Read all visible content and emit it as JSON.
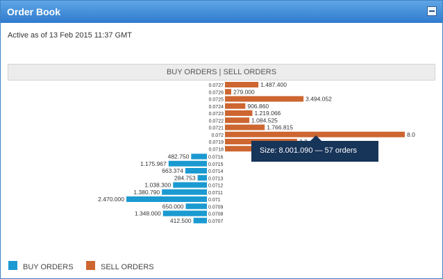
{
  "panel": {
    "title": "Order Book",
    "minimize_icon": "minimize-icon",
    "active_text": "Active as of 13 Feb 2015 11:37 GMT",
    "header_title": "BUY ORDERS | SELL ORDERS"
  },
  "colors": {
    "buy": "#1b9ad1",
    "sell": "#cd6630",
    "title_bar": "#3f83c6"
  },
  "tooltip": {
    "text": "Size: 8.001.090 — 57 orders"
  },
  "legend": [
    {
      "key": "buy",
      "label": "BUY ORDERS"
    },
    {
      "key": "sell",
      "label": "SELL ORDERS"
    }
  ],
  "chart_data": {
    "type": "bar",
    "sell_orders": [
      {
        "price": "0.0727",
        "size": 1487400,
        "label": "1.487.400"
      },
      {
        "price": "0.0726",
        "size": 279000,
        "label": "279.000"
      },
      {
        "price": "0.0725",
        "size": 3494052,
        "label": "3.494.052"
      },
      {
        "price": "0.0724",
        "size": 906860,
        "label": "906.860"
      },
      {
        "price": "0.0723",
        "size": 1219066,
        "label": "1.219.066"
      },
      {
        "price": "0.0722",
        "size": 1084525,
        "label": "1.084.525"
      },
      {
        "price": "0.0721",
        "size": 1766815,
        "label": "1.766.815"
      },
      {
        "price": "0.072",
        "size": 8001090,
        "label": "8.0"
      },
      {
        "price": "0.0719",
        "size": 3210382,
        "label": "3.2..382"
      },
      {
        "price": "0.0718",
        "size": 1300000,
        "label": ""
      }
    ],
    "buy_orders": [
      {
        "price": "0.0716",
        "size": 482750,
        "label": "482.750"
      },
      {
        "price": "0.0715",
        "size": 1175967,
        "label": "1.175.967"
      },
      {
        "price": "0.0714",
        "size": 663374,
        "label": "663.374"
      },
      {
        "price": "0.0713",
        "size": 284753,
        "label": "284.753"
      },
      {
        "price": "0.0712",
        "size": 1038300,
        "label": "1.038.300"
      },
      {
        "price": "0.0711",
        "size": 1380790,
        "label": "1.380.790"
      },
      {
        "price": "0.071",
        "size": 2470000,
        "label": "2.470.000"
      },
      {
        "price": "0.0709",
        "size": 650000,
        "label": "650.000"
      },
      {
        "price": "0.0708",
        "size": 1348000,
        "label": "1.348.000"
      },
      {
        "price": "0.0707",
        "size": 412500,
        "label": "412.500"
      }
    ]
  }
}
